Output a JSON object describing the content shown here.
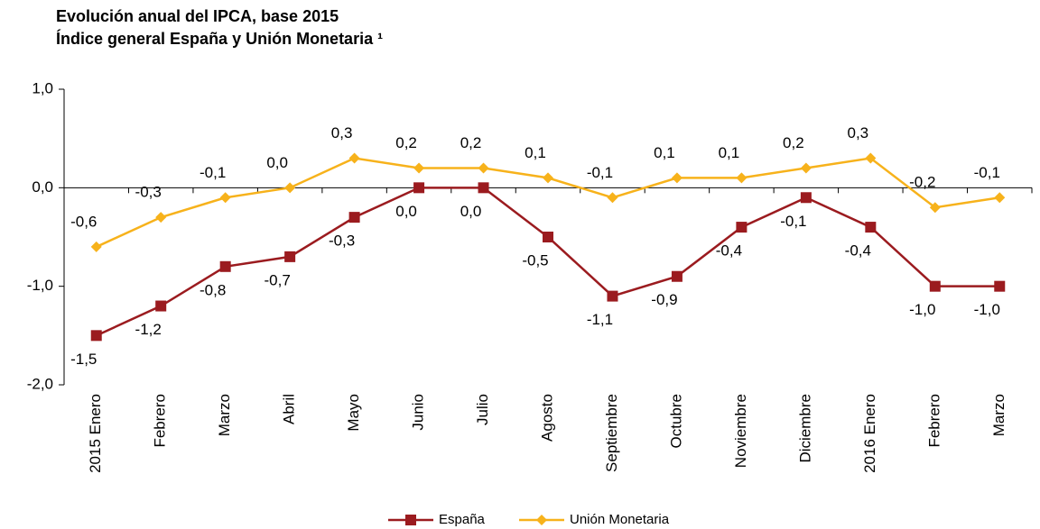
{
  "chart_data": {
    "type": "line",
    "title": "Evolución anual del IPCA, base 2015",
    "subtitle": "Índice general España y Unión Monetaria ¹",
    "categories": [
      "2015 Enero",
      "Febrero",
      "Marzo",
      "Abril",
      "Mayo",
      "Junio",
      "Julio",
      "Agosto",
      "Septiembre",
      "Octubre",
      "Noviembre",
      "Diciembre",
      "2016 Enero",
      "Febrero",
      "Marzo"
    ],
    "series": [
      {
        "name": "España",
        "color": "#9b1b1f",
        "marker": "square",
        "values": [
          -1.5,
          -1.2,
          -0.8,
          -0.7,
          -0.3,
          0.0,
          0.0,
          -0.5,
          -1.1,
          -0.9,
          -0.4,
          -0.1,
          -0.4,
          -1.0,
          -1.0
        ],
        "value_labels": [
          "-1,5",
          "-1,2",
          "-0,8",
          "-0,7",
          "-0,3",
          "0,0",
          "0,0",
          "-0,5",
          "-1,1",
          "-0,9",
          "-0,4",
          "-0,1",
          "-0,4",
          "-1,0",
          "-1,0"
        ]
      },
      {
        "name": "Unión Monetaria",
        "color": "#f7b21b",
        "marker": "diamond",
        "values": [
          -0.6,
          -0.3,
          -0.1,
          0.0,
          0.3,
          0.2,
          0.2,
          0.1,
          -0.1,
          0.1,
          0.1,
          0.2,
          0.3,
          -0.2,
          -0.1
        ],
        "value_labels": [
          "-0,6",
          "-0,3",
          "-0,1",
          "0,0",
          "0,3",
          "0,2",
          "0,2",
          "0,1",
          "-0,1",
          "0,1",
          "0,1",
          "0,2",
          "0,3",
          "-0,2",
          "-0,1"
        ]
      }
    ],
    "ylim": [
      -2,
      1
    ],
    "yticks": [
      {
        "value": -2,
        "label": "-2,0"
      },
      {
        "value": -1,
        "label": "-1,0"
      },
      {
        "value": 0,
        "label": "0,0"
      },
      {
        "value": 1,
        "label": "1,0"
      }
    ],
    "grid": false,
    "legend": "bottom"
  }
}
